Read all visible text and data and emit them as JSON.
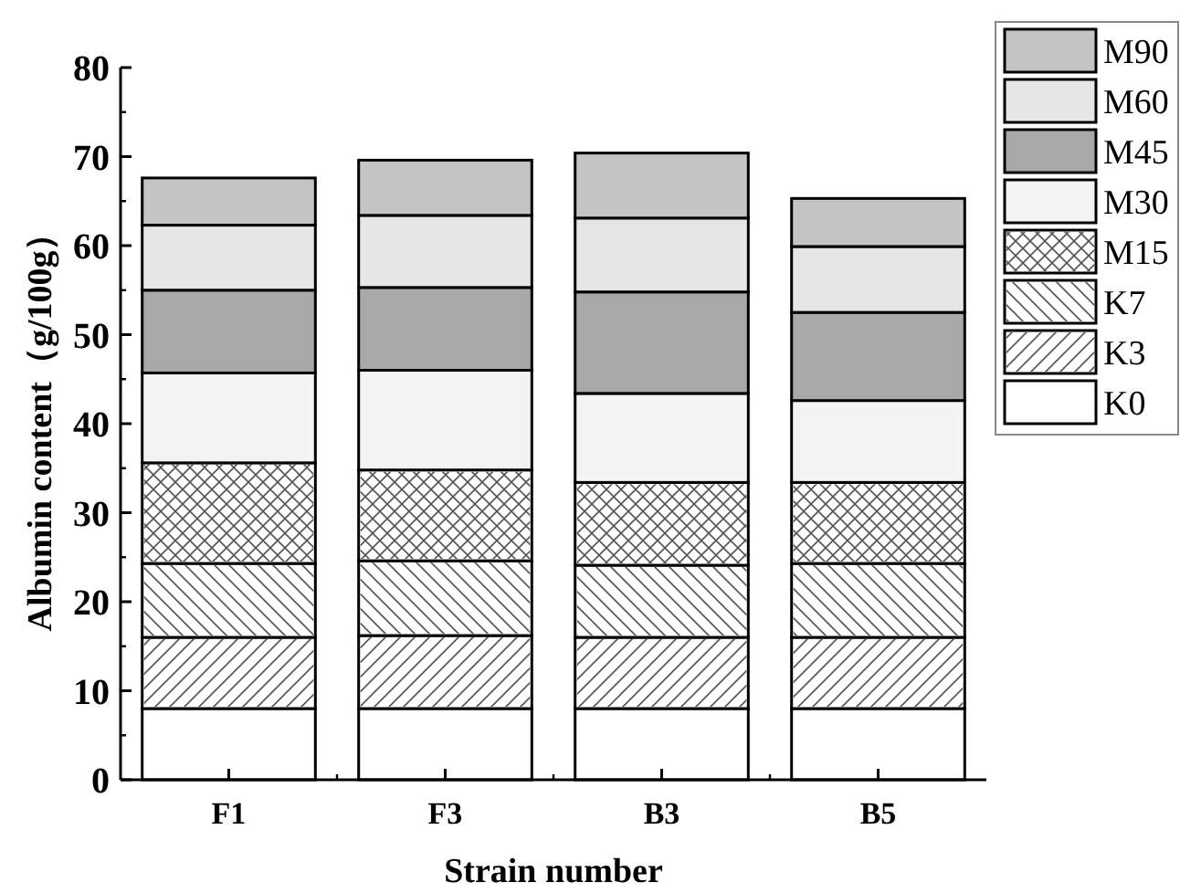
{
  "chart_data": {
    "type": "bar",
    "stacked": true,
    "xlabel": "Strain number",
    "ylabel": "Albumin content（g/100g）",
    "categories": [
      "F1",
      "F3",
      "B3",
      "B5"
    ],
    "ylim": [
      0,
      80
    ],
    "yticks": [
      0,
      10,
      20,
      30,
      40,
      50,
      60,
      70,
      80
    ],
    "grid": false,
    "legend": "top right",
    "series": [
      {
        "name": "K0",
        "color": "#ffffff",
        "values": [
          8,
          8,
          8,
          8
        ]
      },
      {
        "name": "K3",
        "color": "#ffffff",
        "values": [
          8,
          8.2,
          8,
          8
        ]
      },
      {
        "name": "K7",
        "color": "#ffffff",
        "values": [
          8.3,
          8.4,
          8.1,
          8.3
        ]
      },
      {
        "name": "M15",
        "color": "#ffffff",
        "values": [
          11.3,
          10.2,
          9.3,
          9.1
        ]
      },
      {
        "name": "M30",
        "color": "#f4f4f4",
        "values": [
          10.1,
          11.2,
          10,
          9.2
        ]
      },
      {
        "name": "M45",
        "color": "#a8a8a8",
        "values": [
          9.3,
          9.3,
          11.4,
          9.9
        ]
      },
      {
        "name": "M60",
        "color": "#e6e6e6",
        "values": [
          7.3,
          8.1,
          8.3,
          7.4
        ]
      },
      {
        "name": "M90",
        "color": "#c4c4c4",
        "values": [
          5.3,
          6.2,
          7.3,
          5.4
        ]
      }
    ]
  }
}
